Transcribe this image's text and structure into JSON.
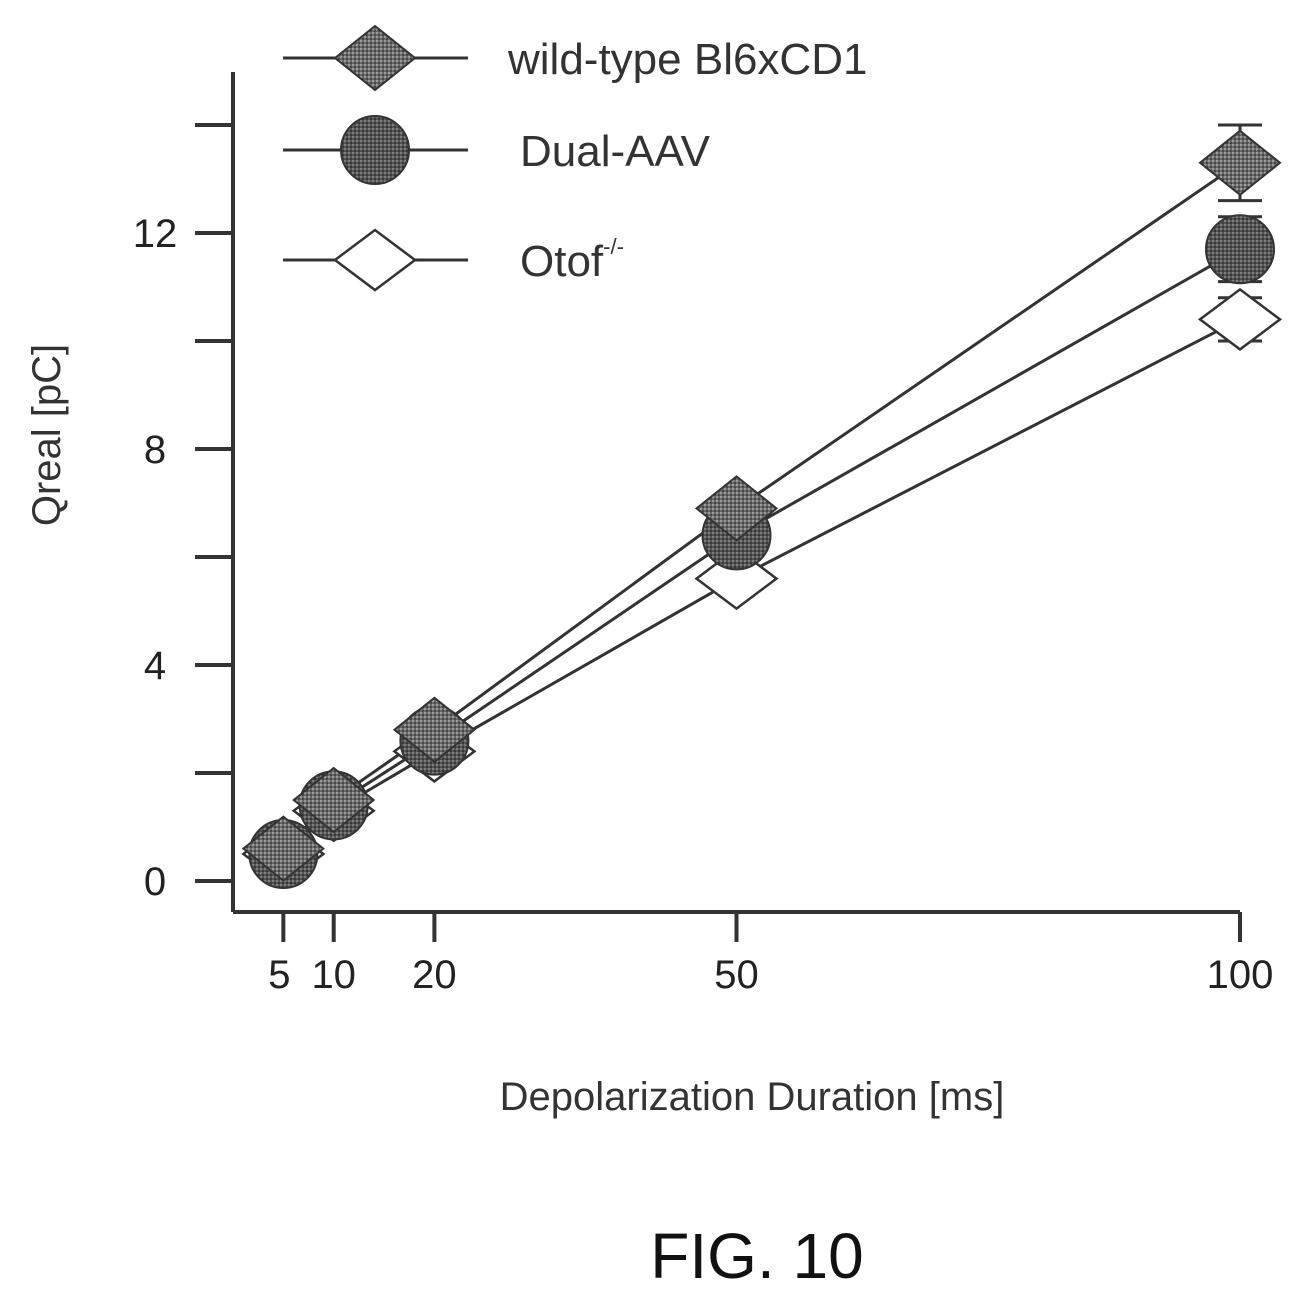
{
  "figure": {
    "caption": "FIG. 10"
  },
  "chart_data": {
    "type": "line",
    "xlabel": "Depolarization Duration [ms]",
    "ylabel": "Qreal [pC]",
    "x_ticks": [
      "5",
      "10",
      "20",
      "50",
      "100"
    ],
    "y_ticks": [
      "0",
      "4",
      "8",
      "12"
    ],
    "xlim": [
      0,
      100
    ],
    "ylim": [
      0,
      14
    ],
    "legend_position": "top-left",
    "series": [
      {
        "name": "wild-type Bl6xCD1",
        "marker": "diamond-filled",
        "color": "#555555",
        "x": [
          5,
          10,
          20,
          50,
          100
        ],
        "y": [
          0.6,
          1.5,
          2.8,
          6.9,
          13.3
        ],
        "error": [
          0,
          0,
          0,
          0,
          0.7
        ]
      },
      {
        "name": "Dual-AAV",
        "marker": "circle-filled",
        "color": "#444444",
        "x": [
          5,
          10,
          20,
          50,
          100
        ],
        "y": [
          0.5,
          1.4,
          2.6,
          6.4,
          11.7
        ],
        "error": [
          0,
          0,
          0,
          0,
          0.6
        ]
      },
      {
        "name": "Otof",
        "name_superscript": "-/-",
        "marker": "diamond-open",
        "color": "#ffffff",
        "x": [
          5,
          10,
          20,
          50,
          100
        ],
        "y": [
          0.5,
          1.3,
          2.4,
          5.6,
          10.4
        ],
        "error": [
          0,
          0,
          0,
          0,
          0.4
        ]
      }
    ]
  }
}
